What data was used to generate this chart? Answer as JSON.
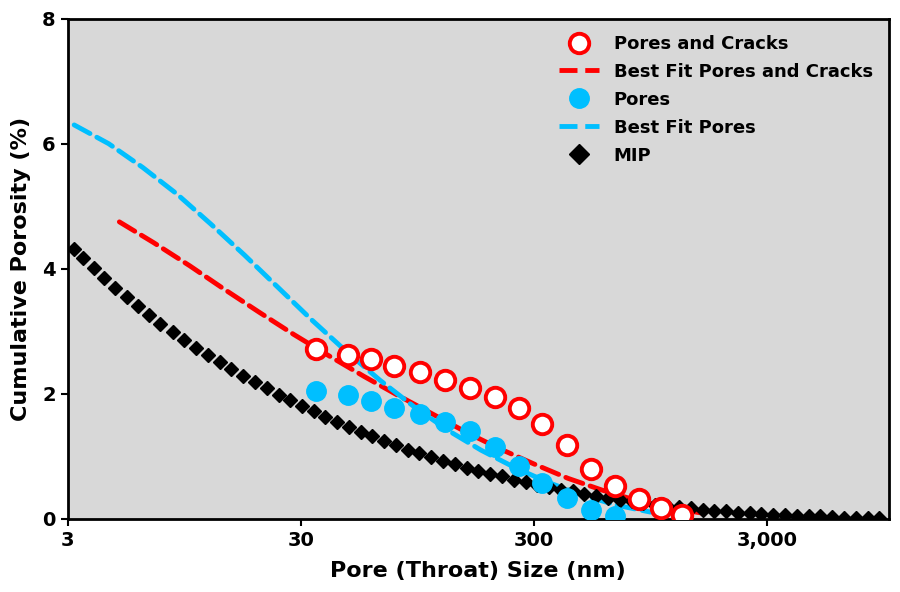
{
  "title": "",
  "xlabel": "Pore (Throat) Size (nm)",
  "ylabel": "Cumulative Porosity (%)",
  "xlim_log": [
    3,
    10000
  ],
  "ylim": [
    0,
    8
  ],
  "yticks": [
    0,
    2,
    4,
    6,
    8
  ],
  "xtick_pos": [
    3,
    30,
    300,
    3000
  ],
  "xtick_labels": [
    "3",
    "30",
    "300",
    "3,000"
  ],
  "mip_x": [
    3.2,
    3.5,
    3.9,
    4.3,
    4.8,
    5.4,
    6.0,
    6.7,
    7.5,
    8.5,
    9.5,
    10.7,
    12.0,
    13.5,
    15.1,
    17.0,
    19.1,
    21.4,
    24.1,
    27.0,
    30.3,
    34.1,
    38.3,
    43.0,
    48.3,
    54.2,
    60.9,
    68.4,
    76.8,
    86.3,
    96.9,
    108.9,
    122.3,
    137.3,
    154.3,
    173.3,
    194.7,
    218.8,
    245.8,
    276.2,
    310.3,
    348.7,
    391.8,
    440.2,
    494.6,
    555.7,
    624.4,
    701.4,
    788.0,
    885.5,
    995.0,
    1118,
    1257,
    1412,
    1587,
    1783,
    2003,
    2250,
    2528,
    2840,
    3190,
    3585,
    4029,
    4527,
    5087,
    5716,
    6422,
    7215,
    8107,
    9110
  ],
  "mip_y": [
    4.32,
    4.18,
    4.02,
    3.86,
    3.7,
    3.55,
    3.4,
    3.26,
    3.12,
    2.99,
    2.86,
    2.74,
    2.62,
    2.51,
    2.4,
    2.29,
    2.19,
    2.09,
    1.99,
    1.9,
    1.81,
    1.72,
    1.63,
    1.55,
    1.47,
    1.39,
    1.32,
    1.25,
    1.18,
    1.11,
    1.05,
    0.99,
    0.93,
    0.88,
    0.82,
    0.77,
    0.72,
    0.68,
    0.63,
    0.59,
    0.55,
    0.51,
    0.47,
    0.44,
    0.4,
    0.37,
    0.34,
    0.31,
    0.28,
    0.26,
    0.23,
    0.21,
    0.19,
    0.17,
    0.15,
    0.13,
    0.12,
    0.1,
    0.09,
    0.08,
    0.07,
    0.06,
    0.05,
    0.04,
    0.04,
    0.03,
    0.02,
    0.02,
    0.02,
    0.01
  ],
  "pores_cracks_x": [
    35,
    48,
    60,
    75,
    97,
    125,
    160,
    205,
    260,
    325,
    415,
    530,
    670,
    850,
    1050,
    1300
  ],
  "pores_cracks_y": [
    2.72,
    2.62,
    2.55,
    2.45,
    2.35,
    2.22,
    2.1,
    1.95,
    1.78,
    1.52,
    1.18,
    0.8,
    0.52,
    0.32,
    0.18,
    0.07
  ],
  "pores_x": [
    35,
    48,
    60,
    75,
    97,
    125,
    160,
    205,
    260,
    325,
    415,
    530,
    670
  ],
  "pores_y": [
    2.05,
    1.98,
    1.88,
    1.78,
    1.68,
    1.55,
    1.4,
    1.15,
    0.85,
    0.58,
    0.33,
    0.15,
    0.05
  ],
  "best_fit_pc_x": [
    5,
    7,
    10,
    14,
    20,
    28,
    40,
    56,
    78,
    110,
    155,
    215,
    300,
    420,
    590,
    820,
    1150,
    1600
  ],
  "best_fit_pc_y": [
    4.75,
    4.42,
    4.05,
    3.68,
    3.3,
    2.95,
    2.6,
    2.28,
    1.98,
    1.68,
    1.38,
    1.12,
    0.88,
    0.65,
    0.46,
    0.3,
    0.18,
    0.09
  ],
  "best_fit_pores_x": [
    3.2,
    4.5,
    6.3,
    8.8,
    12.3,
    17.2,
    24.0,
    33.5,
    47.0,
    65.5,
    91.5,
    128,
    178,
    249,
    348,
    486,
    679,
    949
  ],
  "best_fit_pores_y": [
    6.3,
    6.0,
    5.62,
    5.2,
    4.72,
    4.22,
    3.7,
    3.18,
    2.68,
    2.22,
    1.8,
    1.42,
    1.1,
    0.82,
    0.58,
    0.38,
    0.22,
    0.11
  ],
  "color_red": "#FF0000",
  "color_blue": "#00BFFF",
  "color_black": "#000000",
  "bg_color": "#FFFFFF",
  "plot_bg_color": "#D8D8D8",
  "legend_labels": [
    "Pores and Cracks",
    "Best Fit Pores and Cracks",
    "Pores",
    "Best Fit Pores",
    "MIP"
  ],
  "fontsize_label": 16,
  "fontsize_tick": 14,
  "fontsize_legend": 13
}
